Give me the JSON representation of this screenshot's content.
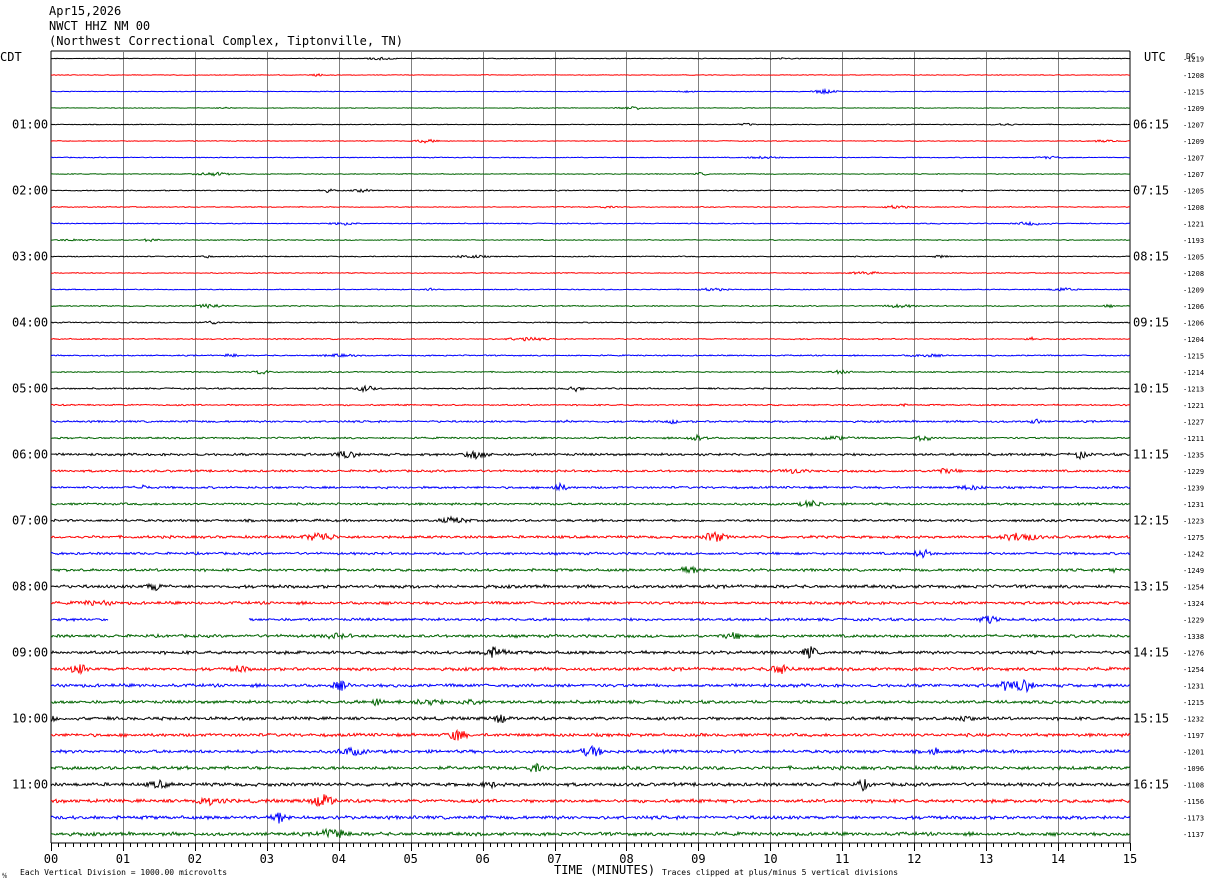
{
  "header": {
    "date": "Apr15,2026",
    "station": "NWCT HHZ NM 00",
    "location": "(Northwest Correctional Complex, Tiptonville, TN)"
  },
  "labels": {
    "left_tz": "CDT",
    "right_tz": "UTC",
    "dc": "DC"
  },
  "footer": {
    "scale_note": "Each Vertical Division = 1000.00 microvolts",
    "xlabel": "TIME (MINUTES)",
    "clip_note": "Traces clipped at plus/minus 5 vertical divisions",
    "corner_mark": "⅍"
  },
  "colors": {
    "trace_cycle": [
      "#000000",
      "#ff0000",
      "#0000ff",
      "#006400"
    ],
    "grid": "#808080"
  },
  "chart_data": {
    "type": "line",
    "title": "",
    "xlabel": "TIME (MINUTES)",
    "xlim": [
      0,
      15
    ],
    "x_ticks": [
      "00",
      "01",
      "02",
      "03",
      "04",
      "05",
      "06",
      "07",
      "08",
      "09",
      "10",
      "11",
      "12",
      "13",
      "14",
      "15"
    ],
    "left_time_labels": [
      "01:00",
      "02:00",
      "03:00",
      "04:00",
      "05:00",
      "06:00",
      "07:00",
      "08:00",
      "09:00",
      "10:00",
      "11:00"
    ],
    "right_time_labels": [
      "06:15",
      "07:15",
      "08:15",
      "09:15",
      "10:15",
      "11:15",
      "12:15",
      "13:15",
      "14:15",
      "15:15",
      "16:15"
    ],
    "dc_offsets": [
      "-1219",
      "-1208",
      "-1215",
      "-1209",
      "-1207",
      "-1209",
      "-1207",
      "-1207",
      "-1205",
      "-1208",
      "-1221",
      "-1193",
      "-1205",
      "-1208",
      "-1209",
      "-1206",
      "-1206",
      "-1204",
      "-1215",
      "-1214",
      "-1213",
      "-1221",
      "-1227",
      "-1211",
      "-1235",
      "-1229",
      "-1239",
      "-1231",
      "-1223",
      "-1275",
      "-1242",
      "-1249",
      "-1254",
      "-1324",
      "-1229",
      "-1338",
      "-1276",
      "-1254",
      "-1231",
      "-1215",
      "-1232",
      "-1197",
      "-1201",
      "-1096",
      "-1108",
      "-1156",
      "-1173",
      "-1137"
    ],
    "trace_activity": [
      0.3,
      0.3,
      0.3,
      0.3,
      0.3,
      0.35,
      0.35,
      0.35,
      0.4,
      0.4,
      0.4,
      0.4,
      0.4,
      0.4,
      0.4,
      0.45,
      0.45,
      0.5,
      0.5,
      0.5,
      0.6,
      0.6,
      0.8,
      0.7,
      1.0,
      0.9,
      0.9,
      0.9,
      1.0,
      1.1,
      1.0,
      1.1,
      1.3,
      1.2,
      1.1,
      1.2,
      1.3,
      1.3,
      1.3,
      1.3,
      1.3,
      1.3,
      1.3,
      1.4,
      1.4,
      1.4,
      1.4,
      1.4
    ],
    "gaps": [
      {
        "trace": 34,
        "start_min": 0.8,
        "end_min": 2.75
      }
    ]
  }
}
